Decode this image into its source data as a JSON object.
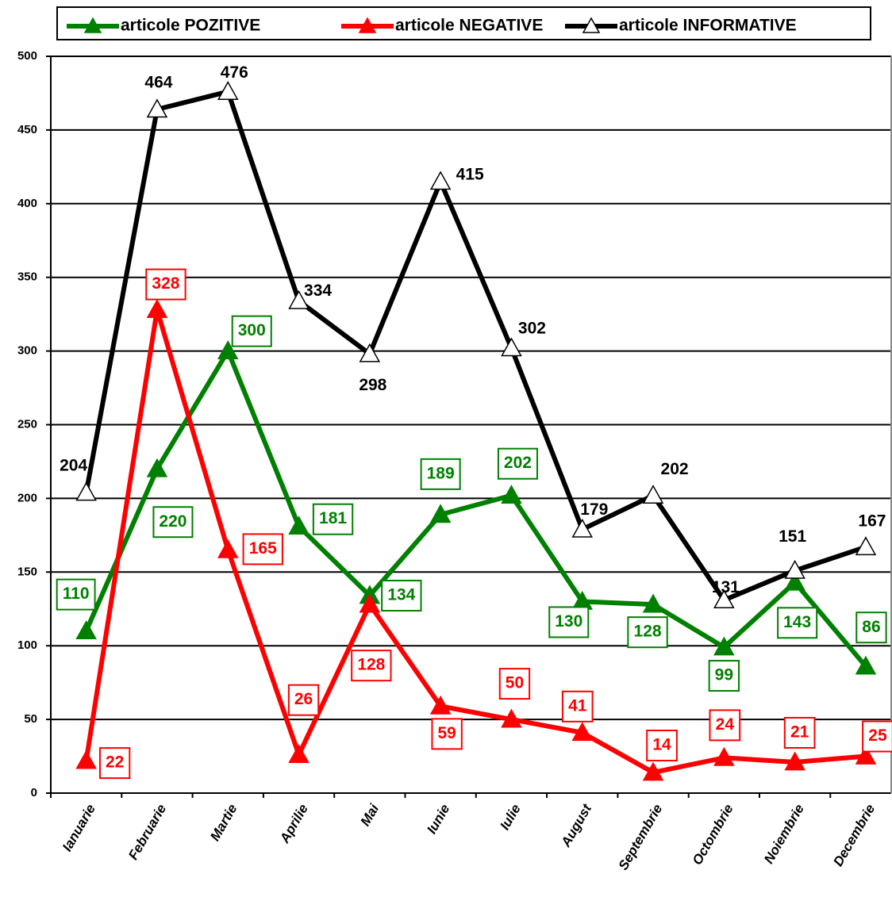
{
  "chart_data": {
    "type": "line",
    "categories": [
      "Ianuarie",
      "Februarie",
      "Martie",
      "Aprilie",
      "Mai",
      "Iunie",
      "Iulie",
      "August",
      "Septembrie",
      "Octombrie",
      "Noiembrie",
      "Decembrie"
    ],
    "series": [
      {
        "name": "articole POZITIVE",
        "color": "#008000",
        "marker": "filled",
        "label_box": true,
        "values": [
          110,
          220,
          300,
          181,
          134,
          189,
          202,
          130,
          128,
          99,
          143,
          86
        ]
      },
      {
        "name": "articole NEGATIVE",
        "color": "#ff0000",
        "marker": "filled",
        "label_box": true,
        "values": [
          22,
          328,
          165,
          26,
          128,
          59,
          50,
          41,
          14,
          24,
          21,
          25
        ]
      },
      {
        "name": "articole INFORMATIVE",
        "color": "#000000",
        "marker": "hollow",
        "label_box": false,
        "values": [
          204,
          464,
          476,
          334,
          298,
          415,
          302,
          179,
          202,
          131,
          151,
          167
        ]
      }
    ],
    "ylim": [
      0,
      500
    ],
    "yticks": [
      0,
      50,
      100,
      150,
      200,
      250,
      300,
      350,
      400,
      450,
      500
    ],
    "grid": true
  }
}
